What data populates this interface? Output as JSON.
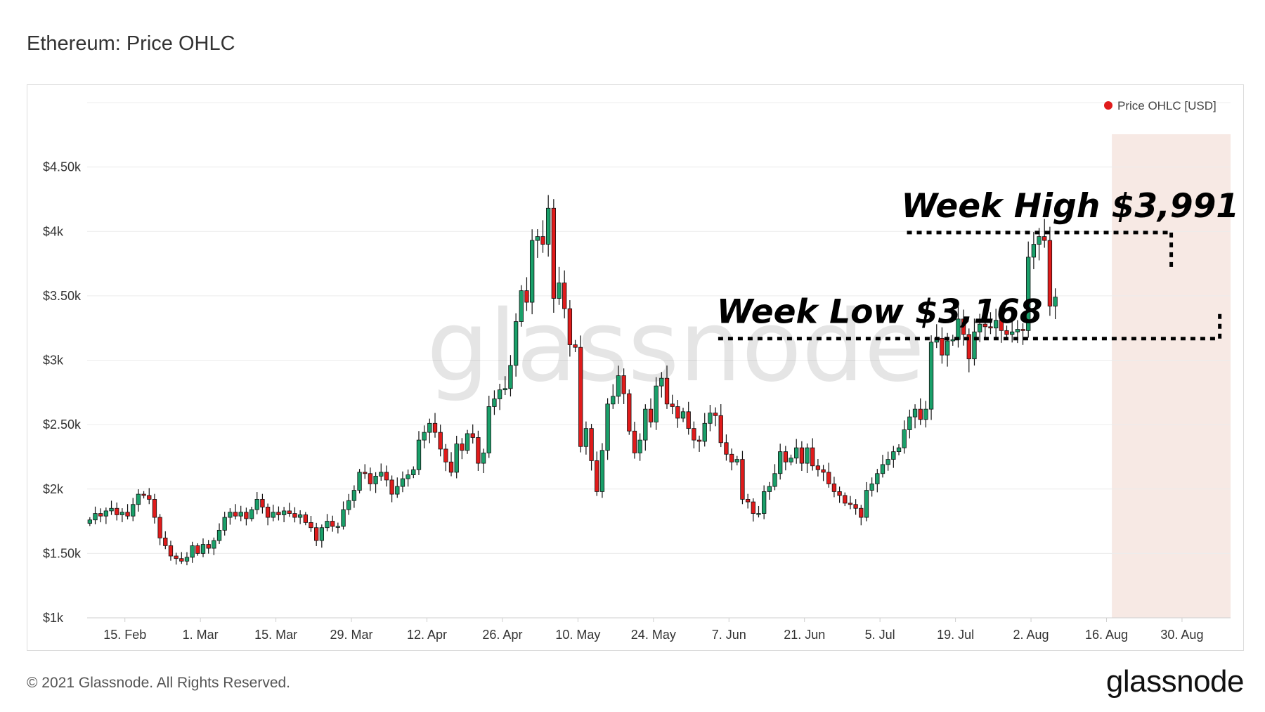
{
  "title": "Ethereum: Price OHLC",
  "footer": {
    "copyright": "© 2021 Glassnode. All Rights Reserved.",
    "brand": "glassnode"
  },
  "colors": {
    "up": "#1aa06a",
    "down": "#e01b1b",
    "grid": "#ececec",
    "highlight": "#f3ddd5",
    "legend_dot": "#e01b1b"
  },
  "chart_data": {
    "type": "candlestick",
    "title": "Ethereum: Price OHLC",
    "legend": {
      "position": "top-right",
      "label": "Price OHLC [USD]"
    },
    "y_ticks": [
      {
        "value": 1000,
        "label": "$1k"
      },
      {
        "value": 1500,
        "label": "$1.50k"
      },
      {
        "value": 2000,
        "label": "$2k"
      },
      {
        "value": 2500,
        "label": "$2.50k"
      },
      {
        "value": 3000,
        "label": "$3k"
      },
      {
        "value": 3500,
        "label": "$3.50k"
      },
      {
        "value": 4000,
        "label": "$4k"
      },
      {
        "value": 4500,
        "label": "$4.50k"
      }
    ],
    "ylim": [
      1000,
      5000
    ],
    "x_ticks": [
      {
        "date": "2021-02-15",
        "label": "15. Feb"
      },
      {
        "date": "2021-03-01",
        "label": "1. Mar"
      },
      {
        "date": "2021-03-15",
        "label": "15. Mar"
      },
      {
        "date": "2021-03-29",
        "label": "29. Mar"
      },
      {
        "date": "2021-04-12",
        "label": "12. Apr"
      },
      {
        "date": "2021-04-26",
        "label": "26. Apr"
      },
      {
        "date": "2021-05-10",
        "label": "10. May"
      },
      {
        "date": "2021-05-24",
        "label": "24. May"
      },
      {
        "date": "2021-06-07",
        "label": "7. Jun"
      },
      {
        "date": "2021-06-21",
        "label": "21. Jun"
      },
      {
        "date": "2021-07-05",
        "label": "5. Jul"
      },
      {
        "date": "2021-07-19",
        "label": "19. Jul"
      },
      {
        "date": "2021-08-02",
        "label": "2. Aug"
      },
      {
        "date": "2021-08-16",
        "label": "16. Aug"
      },
      {
        "date": "2021-08-30",
        "label": "30. Aug"
      }
    ],
    "x_range": [
      "2021-02-08",
      "2021-09-08"
    ],
    "grid": true,
    "watermark": "glassnode",
    "highlight": {
      "from": "2021-08-17",
      "to": "2021-09-08"
    },
    "annotations": [
      {
        "text": "Week High $3,991",
        "value": 3991,
        "from": "2021-07-10",
        "to": "2021-08-28"
      },
      {
        "text": "Week Low $3,168",
        "value": 3168,
        "from": "2021-06-05",
        "to": "2021-09-06"
      }
    ],
    "ohlc_closes": [
      1760,
      1810,
      1790,
      1830,
      1850,
      1800,
      1820,
      1790,
      1880,
      1960,
      1950,
      1920,
      1780,
      1620,
      1560,
      1480,
      1460,
      1440,
      1470,
      1560,
      1500,
      1570,
      1540,
      1600,
      1680,
      1780,
      1820,
      1790,
      1820,
      1770,
      1840,
      1920,
      1860,
      1780,
      1820,
      1800,
      1830,
      1810,
      1780,
      1800,
      1740,
      1700,
      1600,
      1700,
      1750,
      1710,
      1710,
      1840,
      1910,
      1990,
      2130,
      2120,
      2040,
      2100,
      2130,
      2070,
      1960,
      2020,
      2080,
      2110,
      2150,
      2380,
      2440,
      2510,
      2440,
      2310,
      2210,
      2130,
      2350,
      2300,
      2430,
      2400,
      2200,
      2280,
      2640,
      2700,
      2770,
      2780,
      2960,
      3300,
      3540,
      3450,
      3930,
      3960,
      3900,
      4180,
      3480,
      3600,
      3400,
      3120,
      3100,
      2330,
      2470,
      2220,
      1980,
      2300,
      2660,
      2720,
      2880,
      2740,
      2450,
      2280,
      2380,
      2620,
      2520,
      2800,
      2860,
      2660,
      2640,
      2550,
      2600,
      2470,
      2380,
      2370,
      2510,
      2590,
      2570,
      2360,
      2270,
      2210,
      2230,
      1920,
      1900,
      1810,
      1810,
      1980,
      2020,
      2120,
      2290,
      2210,
      2240,
      2320,
      2200,
      2320,
      2180,
      2150,
      2130,
      2040,
      1980,
      1950,
      1890,
      1880,
      1850,
      1780,
      1990,
      2040,
      2120,
      2190,
      2230,
      2290,
      2320,
      2460,
      2560,
      2620,
      2540,
      2620,
      3140,
      3170,
      3040,
      3150,
      3160,
      3320,
      3200,
      3010,
      3220,
      3280,
      3260,
      3250,
      3310,
      3230,
      3200,
      3220,
      3240,
      3230,
      3800,
      3900,
      3960,
      3930,
      3420,
      3490
    ],
    "period": "daily",
    "y_scale": "linear"
  }
}
